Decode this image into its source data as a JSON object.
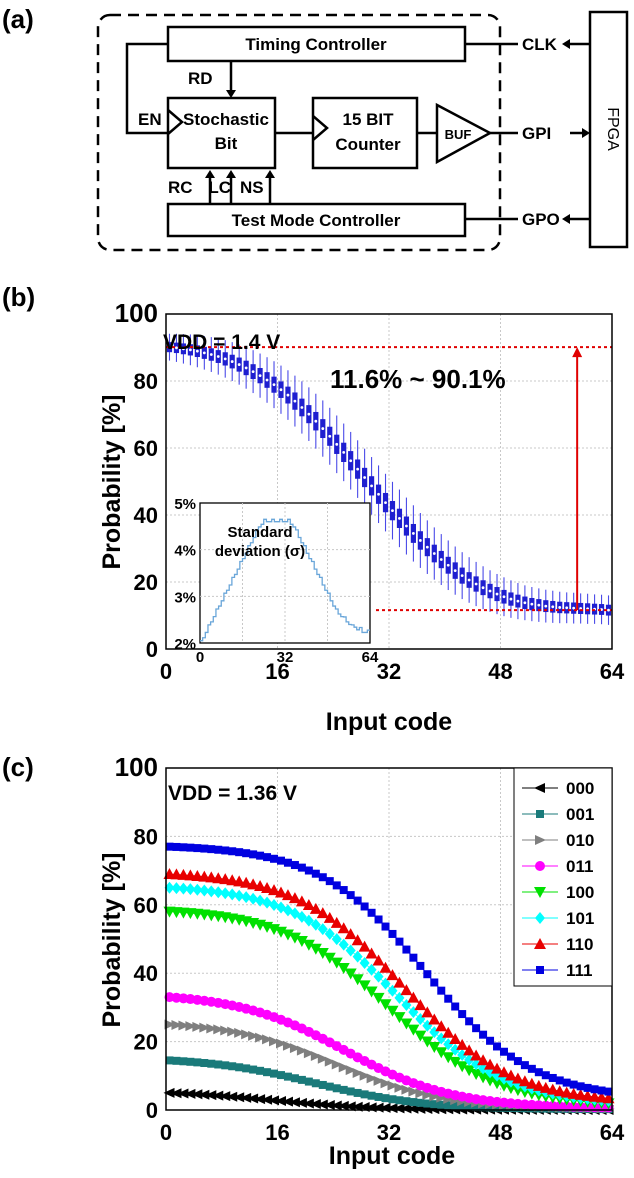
{
  "panel_a": {
    "label": "(a)",
    "blocks": {
      "timing_controller": "Timing Controller",
      "stochastic_bit_line1": "Stochastic",
      "stochastic_bit_line2": "Bit",
      "counter_line1": "15 BIT",
      "counter_line2": "Counter",
      "buf": "BUF",
      "test_mode_controller": "Test Mode Controller",
      "fpga": "FPGA"
    },
    "signals": {
      "rd": "RD",
      "en": "EN",
      "rc": "RC",
      "lc": "LC",
      "ns": "NS",
      "clk": "CLK",
      "gpi": "GPI",
      "gpo": "GPO"
    }
  },
  "chart_data": [
    {
      "panel": "(b)",
      "type": "line",
      "title": "",
      "annotation": "VDD = 1.4 V",
      "range_annotation": "11.6% ~ 90.1%",
      "xlabel": "Input code",
      "ylabel": "Probability [%]",
      "xlim": [
        0,
        64
      ],
      "ylim": [
        0,
        100
      ],
      "xticks": [
        "0",
        "16",
        "32",
        "48",
        "64"
      ],
      "yticks": [
        "0",
        "20",
        "40",
        "60",
        "80",
        "100"
      ],
      "grid": true,
      "reference_lines": [
        90.1,
        11.6
      ],
      "series_color": "#1f1fd0",
      "x": [
        0,
        1,
        2,
        3,
        4,
        5,
        6,
        7,
        8,
        9,
        10,
        11,
        12,
        13,
        14,
        15,
        16,
        17,
        18,
        19,
        20,
        21,
        22,
        23,
        24,
        25,
        26,
        27,
        28,
        29,
        30,
        31,
        32,
        33,
        34,
        35,
        36,
        37,
        38,
        39,
        40,
        41,
        42,
        43,
        44,
        45,
        46,
        47,
        48,
        49,
        50,
        51,
        52,
        53,
        54,
        55,
        56,
        57,
        58,
        59,
        60,
        61,
        62,
        63
      ],
      "mean": [
        90.1,
        89.9,
        89.6,
        89.3,
        88.9,
        88.4,
        87.9,
        87.3,
        86.6,
        85.8,
        84.9,
        83.9,
        82.8,
        81.6,
        80.3,
        78.9,
        77.4,
        75.8,
        74.0,
        72.1,
        70.1,
        68.0,
        65.8,
        63.5,
        61.1,
        58.7,
        56.2,
        53.7,
        51.2,
        48.7,
        46.2,
        43.7,
        41.3,
        39.0,
        36.7,
        34.5,
        32.4,
        30.4,
        28.5,
        26.7,
        25.0,
        23.4,
        21.9,
        20.6,
        19.4,
        18.3,
        17.3,
        16.4,
        15.6,
        14.9,
        14.3,
        13.8,
        13.4,
        13.1,
        12.8,
        12.6,
        12.4,
        12.3,
        12.2,
        12.1,
        12.0,
        11.9,
        11.8,
        11.6
      ],
      "std": [
        2.0,
        2.1,
        2.2,
        2.3,
        2.4,
        2.5,
        2.6,
        2.7,
        2.8,
        2.9,
        3.0,
        3.1,
        3.2,
        3.3,
        3.4,
        3.5,
        3.6,
        3.7,
        3.8,
        3.9,
        4.0,
        4.1,
        4.2,
        4.25,
        4.3,
        4.3,
        4.3,
        4.3,
        4.3,
        4.3,
        4.3,
        4.3,
        4.3,
        4.3,
        4.25,
        4.2,
        4.1,
        4.0,
        3.9,
        3.8,
        3.7,
        3.6,
        3.5,
        3.4,
        3.3,
        3.2,
        3.1,
        3.0,
        2.9,
        2.8,
        2.7,
        2.6,
        2.55,
        2.5,
        2.45,
        2.4,
        2.35,
        2.3,
        2.3,
        2.25,
        2.25,
        2.2,
        2.2,
        2.2
      ],
      "inset": {
        "title_line1": "Standard",
        "title_line2": "deviation (σ)",
        "xticks": [
          "0",
          "32",
          "64"
        ],
        "yticks": [
          "2%",
          "3%",
          "4%",
          "5%"
        ],
        "ylim": [
          2,
          5
        ],
        "xlim": [
          0,
          64
        ]
      }
    },
    {
      "panel": "(c)",
      "type": "line",
      "title": "",
      "annotation": "VDD = 1.36 V",
      "xlabel": "Input code",
      "ylabel": "Probability [%]",
      "xlim": [
        0,
        64
      ],
      "ylim": [
        0,
        100
      ],
      "xticks": [
        "0",
        "16",
        "32",
        "48",
        "64"
      ],
      "yticks": [
        "0",
        "20",
        "40",
        "60",
        "80",
        "100"
      ],
      "grid": true,
      "legend_position": "top-right",
      "series": [
        {
          "name": "000",
          "color": "#000000",
          "marker": "tri-left",
          "start": 5,
          "end": 0,
          "mid": 14
        },
        {
          "name": "001",
          "color": "#1a7a7a",
          "marker": "square",
          "start": 14.5,
          "end": 0.2,
          "mid": 20
        },
        {
          "name": "010",
          "color": "#7f7f7f",
          "marker": "tri-right",
          "start": 25,
          "end": 0.3,
          "mid": 23
        },
        {
          "name": "011",
          "color": "#ff00ff",
          "marker": "circle",
          "start": 33,
          "end": 0.5,
          "mid": 24
        },
        {
          "name": "100",
          "color": "#00e000",
          "marker": "tri-down",
          "start": 58,
          "end": 1.0,
          "mid": 30
        },
        {
          "name": "101",
          "color": "#00ffff",
          "marker": "diamond",
          "start": 65,
          "end": 1.5,
          "mid": 31
        },
        {
          "name": "110",
          "color": "#e80000",
          "marker": "tri-up",
          "start": 69,
          "end": 2.0,
          "mid": 32
        },
        {
          "name": "111",
          "color": "#0000e0",
          "marker": "square",
          "start": 77,
          "end": 3.0,
          "mid": 35
        }
      ]
    }
  ]
}
